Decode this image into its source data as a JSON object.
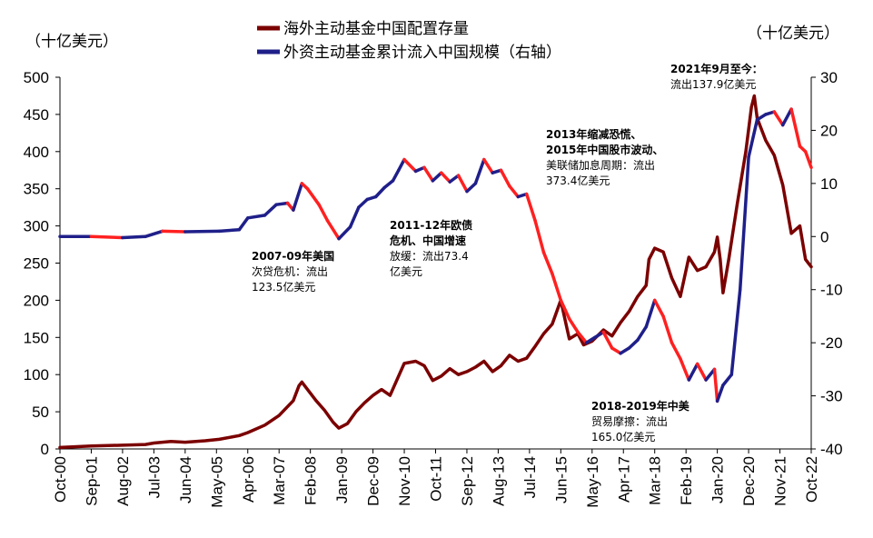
{
  "chart_data": {
    "type": "line",
    "left_unit": "（十亿美元）",
    "right_unit": "（十亿美元）",
    "left_ylim": [
      0,
      500
    ],
    "left_ticks": [
      "0",
      "50",
      "100",
      "150",
      "200",
      "250",
      "300",
      "350",
      "400",
      "450",
      "500"
    ],
    "right_ylim": [
      -40,
      30
    ],
    "right_ticks": [
      "-40",
      "-30",
      "-20",
      "-10",
      "0",
      "10",
      "20",
      "30"
    ],
    "x_range": [
      "2000-10",
      "2022-10"
    ],
    "x_ticks": [
      "Oct-00",
      "Sep-01",
      "Aug-02",
      "Jul-03",
      "Jun-04",
      "May-05",
      "Apr-06",
      "Mar-07",
      "Feb-08",
      "Jan-09",
      "Dec-09",
      "Nov-10",
      "Oct-11",
      "Sep-12",
      "Aug-13",
      "Jul-14",
      "Jun-15",
      "May-16",
      "Apr-17",
      "Mar-18",
      "Feb-19",
      "Jan-20",
      "Dec-20",
      "Nov-21",
      "Oct-22"
    ],
    "colors": {
      "allocation": "#7b0000",
      "inflow": "#1f1f8a",
      "outflow": "#ff2020"
    },
    "series": [
      {
        "name": "海外主动基金中国配置存量",
        "axis": "left",
        "points": [
          [
            "2000-10",
            2
          ],
          [
            "2001-09",
            4
          ],
          [
            "2002-08",
            5
          ],
          [
            "2003-04",
            6
          ],
          [
            "2003-07",
            8
          ],
          [
            "2004-01",
            10
          ],
          [
            "2004-06",
            9
          ],
          [
            "2005-01",
            11
          ],
          [
            "2005-06",
            13
          ],
          [
            "2006-01",
            18
          ],
          [
            "2006-04",
            22
          ],
          [
            "2006-10",
            32
          ],
          [
            "2007-03",
            45
          ],
          [
            "2007-08",
            65
          ],
          [
            "2007-10",
            85
          ],
          [
            "2007-11",
            90
          ],
          [
            "2008-01",
            80
          ],
          [
            "2008-04",
            65
          ],
          [
            "2008-07",
            52
          ],
          [
            "2008-10",
            36
          ],
          [
            "2008-12",
            28
          ],
          [
            "2009-03",
            34
          ],
          [
            "2009-06",
            50
          ],
          [
            "2009-09",
            62
          ],
          [
            "2009-12",
            72
          ],
          [
            "2010-03",
            80
          ],
          [
            "2010-06",
            72
          ],
          [
            "2010-09",
            98
          ],
          [
            "2010-11",
            115
          ],
          [
            "2011-03",
            118
          ],
          [
            "2011-06",
            112
          ],
          [
            "2011-09",
            92
          ],
          [
            "2011-12",
            98
          ],
          [
            "2012-03",
            108
          ],
          [
            "2012-06",
            100
          ],
          [
            "2012-09",
            104
          ],
          [
            "2012-12",
            110
          ],
          [
            "2013-03",
            118
          ],
          [
            "2013-06",
            104
          ],
          [
            "2013-09",
            112
          ],
          [
            "2013-12",
            126
          ],
          [
            "2014-03",
            118
          ],
          [
            "2014-06",
            122
          ],
          [
            "2014-09",
            138
          ],
          [
            "2014-12",
            155
          ],
          [
            "2015-03",
            168
          ],
          [
            "2015-06",
            200
          ],
          [
            "2015-08",
            165
          ],
          [
            "2015-09",
            148
          ],
          [
            "2015-12",
            155
          ],
          [
            "2016-02",
            140
          ],
          [
            "2016-05",
            145
          ],
          [
            "2016-09",
            160
          ],
          [
            "2016-12",
            152
          ],
          [
            "2017-03",
            170
          ],
          [
            "2017-06",
            185
          ],
          [
            "2017-09",
            205
          ],
          [
            "2017-12",
            220
          ],
          [
            "2018-01",
            255
          ],
          [
            "2018-03",
            270
          ],
          [
            "2018-06",
            265
          ],
          [
            "2018-09",
            230
          ],
          [
            "2018-12",
            205
          ],
          [
            "2019-03",
            258
          ],
          [
            "2019-06",
            240
          ],
          [
            "2019-09",
            245
          ],
          [
            "2019-12",
            265
          ],
          [
            "2020-01",
            285
          ],
          [
            "2020-02",
            255
          ],
          [
            "2020-03",
            210
          ],
          [
            "2020-05",
            255
          ],
          [
            "2020-08",
            330
          ],
          [
            "2020-11",
            400
          ],
          [
            "2021-01",
            460
          ],
          [
            "2021-02",
            475
          ],
          [
            "2021-03",
            445
          ],
          [
            "2021-06",
            415
          ],
          [
            "2021-09",
            395
          ],
          [
            "2021-12",
            355
          ],
          [
            "2022-03",
            290
          ],
          [
            "2022-06",
            300
          ],
          [
            "2022-08",
            255
          ],
          [
            "2022-10",
            245
          ]
        ]
      },
      {
        "name": "外资主动基金累计流入中国规模（右轴）",
        "axis": "right",
        "points": [
          [
            "2000-10",
            0
          ],
          [
            "2001-09",
            0
          ],
          [
            "2002-08",
            -0.2
          ],
          [
            "2003-04",
            0
          ],
          [
            "2003-10",
            1
          ],
          [
            "2004-06",
            0.9
          ],
          [
            "2005-06",
            1
          ],
          [
            "2006-01",
            1.3
          ],
          [
            "2006-04",
            3.5
          ],
          [
            "2006-10",
            4
          ],
          [
            "2007-02",
            6
          ],
          [
            "2007-06",
            6.3
          ],
          [
            "2007-08",
            5
          ],
          [
            "2007-11",
            10
          ],
          [
            "2008-01",
            9
          ],
          [
            "2008-05",
            6
          ],
          [
            "2008-08",
            3
          ],
          [
            "2008-12",
            -0.4
          ],
          [
            "2009-04",
            1.8
          ],
          [
            "2009-07",
            5.5
          ],
          [
            "2009-10",
            7
          ],
          [
            "2010-01",
            7.5
          ],
          [
            "2010-04",
            9.2
          ],
          [
            "2010-07",
            10.5
          ],
          [
            "2010-09",
            12.5
          ],
          [
            "2010-11",
            14.5
          ],
          [
            "2011-03",
            12.3
          ],
          [
            "2011-06",
            13
          ],
          [
            "2011-09",
            10.5
          ],
          [
            "2011-12",
            12
          ],
          [
            "2012-03",
            10.3
          ],
          [
            "2012-06",
            11.5
          ],
          [
            "2012-09",
            8.5
          ],
          [
            "2012-12",
            10
          ],
          [
            "2013-03",
            14.5
          ],
          [
            "2013-06",
            12
          ],
          [
            "2013-09",
            12.5
          ],
          [
            "2013-12",
            9.5
          ],
          [
            "2014-03",
            7.5
          ],
          [
            "2014-06",
            8
          ],
          [
            "2014-09",
            3
          ],
          [
            "2014-12",
            -3
          ],
          [
            "2015-03",
            -7
          ],
          [
            "2015-06",
            -12
          ],
          [
            "2015-09",
            -15.5
          ],
          [
            "2015-12",
            -18
          ],
          [
            "2016-03",
            -20
          ],
          [
            "2016-06",
            -19
          ],
          [
            "2016-09",
            -18
          ],
          [
            "2016-12",
            -21
          ],
          [
            "2017-03",
            -22
          ],
          [
            "2017-06",
            -21
          ],
          [
            "2017-09",
            -19.5
          ],
          [
            "2017-12",
            -17
          ],
          [
            "2018-03",
            -12
          ],
          [
            "2018-06",
            -15
          ],
          [
            "2018-09",
            -20
          ],
          [
            "2018-12",
            -23
          ],
          [
            "2019-03",
            -27
          ],
          [
            "2019-06",
            -24
          ],
          [
            "2019-09",
            -27
          ],
          [
            "2019-12",
            -25
          ],
          [
            "2020-01",
            -31
          ],
          [
            "2020-03",
            -28
          ],
          [
            "2020-06",
            -26
          ],
          [
            "2020-09",
            -10
          ],
          [
            "2020-12",
            15
          ],
          [
            "2021-03",
            22
          ],
          [
            "2021-06",
            23
          ],
          [
            "2021-09",
            23.5
          ],
          [
            "2021-12",
            21
          ],
          [
            "2022-03",
            24
          ],
          [
            "2022-06",
            17
          ],
          [
            "2022-08",
            16
          ],
          [
            "2022-10",
            13
          ]
        ]
      }
    ],
    "annotations": [
      {
        "lines": [
          "2007-09年美国",
          "次贷危机：流出",
          "123.5亿美元"
        ]
      },
      {
        "lines": [
          "2011-12年欧债",
          "危机、中国增速",
          "放缓：流出73.4",
          "亿美元"
        ]
      },
      {
        "lines": [
          "2013年缩减恐慌、",
          "2015年中国股市波动、",
          "美联储加息周期：流出",
          "373.4亿美元"
        ]
      },
      {
        "lines": [
          "2018-2019年中美",
          "贸易摩擦：流出",
          "165.0亿美元"
        ]
      },
      {
        "lines": [
          "2021年9月至今：",
          "流出137.9亿美元"
        ]
      }
    ]
  }
}
